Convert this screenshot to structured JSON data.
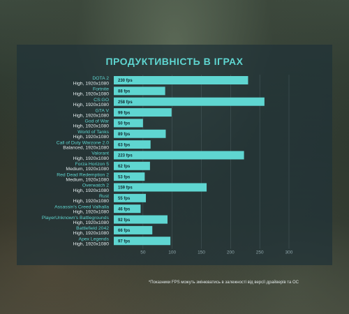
{
  "chart_data": {
    "type": "bar",
    "orientation": "horizontal",
    "title": "ПРОДУКТИВНІСТЬ В ІГРАХ",
    "categories": [
      {
        "game": "DOTA 2",
        "settings": "High, 1920x1080"
      },
      {
        "game": "Fortnite",
        "settings": "High, 1920x1080"
      },
      {
        "game": "CS:GO",
        "settings": "High, 1920x1080"
      },
      {
        "game": "GTA V",
        "settings": "High, 1920x1080"
      },
      {
        "game": "God of War",
        "settings": "High, 1920x1080"
      },
      {
        "game": "World of Tanks",
        "settings": "High, 1920x1080"
      },
      {
        "game": "Call of Duty Warzone 2.0",
        "settings": "Balanced, 1920x1080"
      },
      {
        "game": "Valorant",
        "settings": "High, 1920x1080"
      },
      {
        "game": "Forza Horizon 5",
        "settings": "Medium, 1920x1080"
      },
      {
        "game": "Red Dead Redemption 2",
        "settings": "Medium, 1920x1080"
      },
      {
        "game": "Overwatch 2",
        "settings": "High, 1920x1080"
      },
      {
        "game": "Rust",
        "settings": "High, 1920x1080"
      },
      {
        "game": "Assassin's Creed Valhalla",
        "settings": "High, 1920x1080"
      },
      {
        "game": "PlayerUnknown's Battlegrounds",
        "settings": "High, 1920x1080"
      },
      {
        "game": "Battlefield 2042",
        "settings": "High, 1920x1080"
      },
      {
        "game": "Apex Legends",
        "settings": "High, 1920x1080"
      }
    ],
    "values": [
      230,
      88,
      258,
      99,
      50,
      89,
      63,
      223,
      62,
      53,
      159,
      55,
      46,
      92,
      66,
      97
    ],
    "value_labels": [
      "230 fps",
      "88 fps",
      "258 fps",
      "99 fps",
      "50 fps",
      "89 fps",
      "63 fps",
      "223 fps",
      "62 fps",
      "53 fps",
      "159 fps",
      "55 fps",
      "46 fps",
      "92 fps",
      "66 fps",
      "97 fps"
    ],
    "xticks": [
      50,
      100,
      150,
      200,
      250,
      300
    ],
    "xlim": [
      0,
      300
    ],
    "grid": true,
    "bar_color": "#5fd6d1",
    "title_color": "#5fd6d1"
  },
  "footnote": "*Показники FPS можуть змінюватись в залежності від версії драйверів та ОС"
}
